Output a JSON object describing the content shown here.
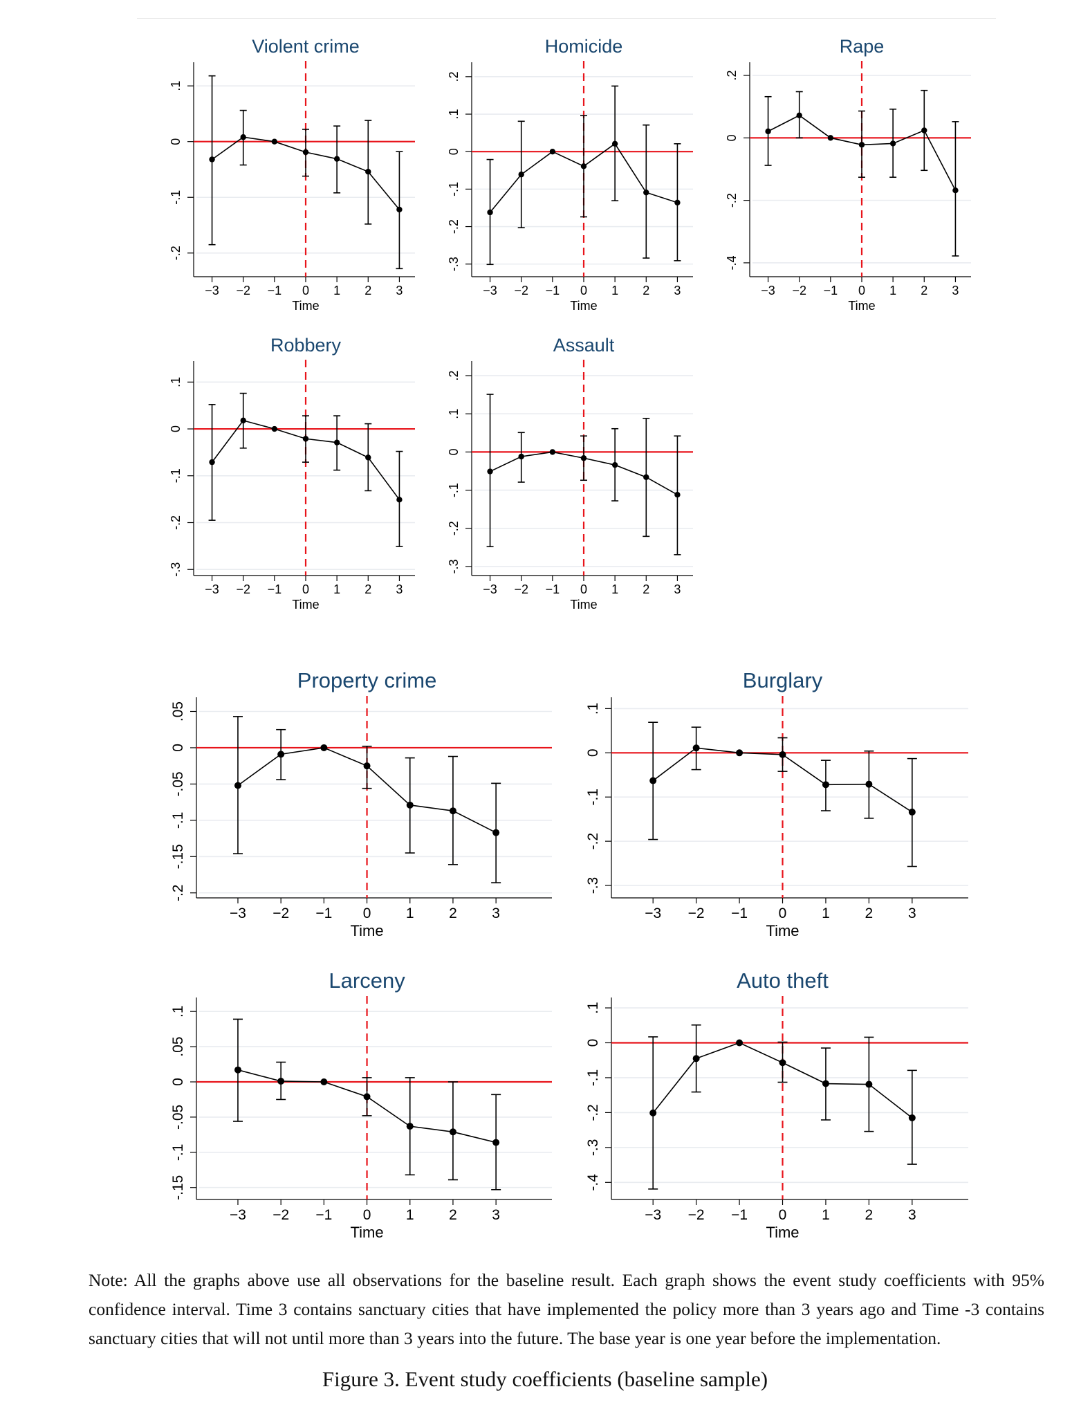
{
  "chart_data": [
    {
      "type": "line",
      "id": "violent",
      "title": "Violent crime",
      "xlabel": "Time",
      "ylabel": "",
      "x": [
        -3,
        -2,
        -1,
        0,
        1,
        2,
        3
      ],
      "series": [
        {
          "name": "coefficient",
          "values": [
            -0.032,
            0.008,
            0.0,
            -0.019,
            -0.031,
            -0.054,
            -0.122
          ],
          "ci_low": [
            -0.185,
            -0.042,
            0.0,
            -0.062,
            -0.092,
            -0.148,
            -0.228
          ],
          "ci_high": [
            0.118,
            0.056,
            0.0,
            0.022,
            0.028,
            0.038,
            -0.018
          ]
        }
      ],
      "xlim": [
        -3.5,
        3.5
      ],
      "ylim": [
        -0.24,
        0.13
      ],
      "yticks": [
        0.1,
        0,
        -0.1,
        -0.2
      ],
      "ytick_labels": [
        ".1",
        "0",
        "-.1",
        "-.2"
      ],
      "xticks": [
        -3,
        -2,
        -1,
        0,
        1,
        2,
        3
      ],
      "xtick_labels": [
        "-3",
        "-2",
        "-1",
        "0",
        "1",
        "2",
        "3"
      ],
      "grid": true
    },
    {
      "type": "line",
      "id": "homicide",
      "title": "Homicide",
      "xlabel": "Time",
      "ylabel": "",
      "x": [
        -3,
        -2,
        -1,
        0,
        1,
        2,
        3
      ],
      "series": [
        {
          "name": "coefficient",
          "values": [
            -0.162,
            -0.061,
            0.0,
            -0.039,
            0.021,
            -0.109,
            -0.136
          ],
          "ci_low": [
            -0.301,
            -0.203,
            0.0,
            -0.174,
            -0.131,
            -0.284,
            -0.291
          ],
          "ci_high": [
            -0.021,
            0.081,
            0.0,
            0.096,
            0.175,
            0.071,
            0.021
          ]
        }
      ],
      "xlim": [
        -3.5,
        3.5
      ],
      "ylim": [
        -0.33,
        0.22
      ],
      "yticks": [
        0.2,
        0.1,
        0,
        -0.1,
        -0.2,
        -0.3
      ],
      "ytick_labels": [
        ".2",
        ".1",
        "0",
        "-.1",
        "-.2",
        "-.3"
      ],
      "xticks": [
        -3,
        -2,
        -1,
        0,
        1,
        2,
        3
      ],
      "xtick_labels": [
        "-3",
        "-2",
        "-1",
        "0",
        "1",
        "2",
        "3"
      ],
      "grid": true
    },
    {
      "type": "line",
      "id": "rape",
      "title": "Rape",
      "xlabel": "Time",
      "ylabel": "",
      "x": [
        -3,
        -2,
        -1,
        0,
        1,
        2,
        3
      ],
      "series": [
        {
          "name": "coefficient",
          "values": [
            0.021,
            0.072,
            0.0,
            -0.022,
            -0.018,
            0.024,
            -0.168
          ],
          "ci_low": [
            -0.088,
            0.0,
            0.0,
            -0.126,
            -0.126,
            -0.104,
            -0.378
          ],
          "ci_high": [
            0.132,
            0.148,
            0.0,
            0.086,
            0.092,
            0.152,
            0.052
          ]
        }
      ],
      "xlim": [
        -3.5,
        3.5
      ],
      "ylim": [
        -0.44,
        0.22
      ],
      "yticks": [
        0.2,
        0,
        -0.2,
        -0.4
      ],
      "ytick_labels": [
        ".2",
        "0",
        "-.2",
        "-.4"
      ],
      "xticks": [
        -3,
        -2,
        -1,
        0,
        1,
        2,
        3
      ],
      "xtick_labels": [
        "-3",
        "-2",
        "-1",
        "0",
        "1",
        "2",
        "3"
      ],
      "grid": true
    },
    {
      "type": "line",
      "id": "robbery",
      "title": "Robbery",
      "xlabel": "Time",
      "ylabel": "",
      "x": [
        -3,
        -2,
        -1,
        0,
        1,
        2,
        3
      ],
      "series": [
        {
          "name": "coefficient",
          "values": [
            -0.071,
            0.018,
            0.0,
            -0.021,
            -0.029,
            -0.061,
            -0.151
          ],
          "ci_low": [
            -0.195,
            -0.041,
            0.0,
            -0.071,
            -0.088,
            -0.132,
            -0.251
          ],
          "ci_high": [
            0.052,
            0.076,
            0.0,
            0.028,
            0.028,
            0.011,
            -0.048
          ]
        }
      ],
      "xlim": [
        -3.5,
        3.5
      ],
      "ylim": [
        -0.31,
        0.13
      ],
      "yticks": [
        0.1,
        0,
        -0.1,
        -0.2,
        -0.3
      ],
      "ytick_labels": [
        ".1",
        "0",
        "-.1",
        "-.2",
        "-.3"
      ],
      "xticks": [
        -3,
        -2,
        -1,
        0,
        1,
        2,
        3
      ],
      "xtick_labels": [
        "-3",
        "-2",
        "-1",
        "0",
        "1",
        "2",
        "3"
      ],
      "grid": true
    },
    {
      "type": "line",
      "id": "assault",
      "title": "Assault",
      "xlabel": "Time",
      "ylabel": "",
      "x": [
        -3,
        -2,
        -1,
        0,
        1,
        2,
        3
      ],
      "series": [
        {
          "name": "coefficient",
          "values": [
            -0.051,
            -0.012,
            0.0,
            -0.016,
            -0.034,
            -0.066,
            -0.112
          ],
          "ci_low": [
            -0.248,
            -0.079,
            0.0,
            -0.074,
            -0.128,
            -0.221,
            -0.269
          ],
          "ci_high": [
            0.151,
            0.051,
            0.0,
            0.042,
            0.061,
            0.088,
            0.042
          ]
        }
      ],
      "xlim": [
        -3.5,
        3.5
      ],
      "ylim": [
        -0.32,
        0.22
      ],
      "yticks": [
        0.2,
        0.1,
        0,
        -0.1,
        -0.2,
        -0.3
      ],
      "ytick_labels": [
        ".2",
        ".1",
        "0",
        "-.1",
        "-.2",
        "-.3"
      ],
      "xticks": [
        -3,
        -2,
        -1,
        0,
        1,
        2,
        3
      ],
      "xtick_labels": [
        "-3",
        "-2",
        "-1",
        "0",
        "1",
        "2",
        "3"
      ],
      "grid": true
    },
    {
      "type": "line",
      "id": "property",
      "title": "Property crime",
      "xlabel": "Time",
      "ylabel": "",
      "x": [
        -3,
        -2,
        -1,
        0,
        1,
        2,
        3
      ],
      "series": [
        {
          "name": "coefficient",
          "values": [
            -0.052,
            -0.009,
            0.0,
            -0.025,
            -0.079,
            -0.087,
            -0.117
          ],
          "ci_low": [
            -0.146,
            -0.044,
            0.0,
            -0.056,
            -0.145,
            -0.161,
            -0.186
          ],
          "ci_high": [
            0.043,
            0.025,
            0.0,
            0.002,
            -0.014,
            -0.012,
            -0.049
          ]
        }
      ],
      "xlim": [
        -3.9,
        4.3
      ],
      "ylim": [
        -0.205,
        0.06
      ],
      "yticks": [
        0.05,
        0,
        -0.05,
        -0.1,
        -0.15,
        -0.2
      ],
      "ytick_labels": [
        ".05",
        "0",
        "-.05",
        "-.1",
        "-.15",
        "-.2"
      ],
      "xticks": [
        -3,
        -2,
        -1,
        0,
        1,
        2,
        3
      ],
      "xtick_labels": [
        "-3",
        "-2",
        "-1",
        "0",
        "1",
        "2",
        "3"
      ],
      "grid": true
    },
    {
      "type": "line",
      "id": "burglary",
      "title": "Burglary",
      "xlabel": "Time",
      "ylabel": "",
      "x": [
        -3,
        -2,
        -1,
        0,
        1,
        2,
        3
      ],
      "series": [
        {
          "name": "coefficient",
          "values": [
            -0.063,
            0.011,
            0.0,
            -0.004,
            -0.072,
            -0.071,
            -0.134
          ],
          "ci_low": [
            -0.196,
            -0.038,
            0.0,
            -0.042,
            -0.131,
            -0.148,
            -0.257
          ],
          "ci_high": [
            0.069,
            0.058,
            0.0,
            0.034,
            -0.017,
            0.004,
            -0.013
          ]
        }
      ],
      "xlim": [
        -3.9,
        4.3
      ],
      "ylim": [
        -0.325,
        0.11
      ],
      "yticks": [
        0.1,
        0,
        -0.1,
        -0.2,
        -0.3
      ],
      "ytick_labels": [
        ".1",
        "0",
        "-.1",
        "-.2",
        "-.3"
      ],
      "xticks": [
        -3,
        -2,
        -1,
        0,
        1,
        2,
        3
      ],
      "xtick_labels": [
        "-3",
        "-2",
        "-1",
        "0",
        "1",
        "2",
        "3"
      ],
      "grid": true
    },
    {
      "type": "line",
      "id": "larceny",
      "title": "Larceny",
      "xlabel": "Time",
      "ylabel": "",
      "x": [
        -3,
        -2,
        -1,
        0,
        1,
        2,
        3
      ],
      "series": [
        {
          "name": "coefficient",
          "values": [
            0.017,
            0.001,
            0.0,
            -0.021,
            -0.063,
            -0.071,
            -0.086
          ],
          "ci_low": [
            -0.056,
            -0.025,
            0.0,
            -0.048,
            -0.132,
            -0.139,
            -0.153
          ],
          "ci_high": [
            0.089,
            0.028,
            0.0,
            0.006,
            0.006,
            0.0,
            -0.018
          ]
        }
      ],
      "xlim": [
        -3.9,
        4.3
      ],
      "ylim": [
        -0.165,
        0.11
      ],
      "yticks": [
        0.1,
        0.05,
        0,
        -0.05,
        -0.1,
        -0.15
      ],
      "ytick_labels": [
        ".1",
        ".05",
        "0",
        "-.05",
        "-.1",
        "-.15"
      ],
      "xticks": [
        -3,
        -2,
        -1,
        0,
        1,
        2,
        3
      ],
      "xtick_labels": [
        "-3",
        "-2",
        "-1",
        "0",
        "1",
        "2",
        "3"
      ],
      "grid": true
    },
    {
      "type": "line",
      "id": "autotheft",
      "title": "Auto theft",
      "xlabel": "Time",
      "ylabel": "",
      "x": [
        -3,
        -2,
        -1,
        0,
        1,
        2,
        3
      ],
      "series": [
        {
          "name": "coefficient",
          "values": [
            -0.201,
            -0.045,
            0.0,
            -0.057,
            -0.117,
            -0.119,
            -0.215
          ],
          "ci_low": [
            -0.419,
            -0.141,
            0.0,
            -0.113,
            -0.221,
            -0.254,
            -0.348
          ],
          "ci_high": [
            0.017,
            0.051,
            0.0,
            0.002,
            -0.015,
            0.016,
            -0.079
          ]
        }
      ],
      "xlim": [
        -3.9,
        4.3
      ],
      "ylim": [
        -0.445,
        0.11
      ],
      "yticks": [
        0.1,
        0,
        -0.1,
        -0.2,
        -0.3,
        -0.4
      ],
      "ytick_labels": [
        ".1",
        "0",
        "-.1",
        "-.2",
        "-.3",
        "-.4"
      ],
      "xticks": [
        -3,
        -2,
        -1,
        0,
        1,
        2,
        3
      ],
      "xtick_labels": [
        "-3",
        "-2",
        "-1",
        "0",
        "1",
        "2",
        "3"
      ],
      "grid": true
    }
  ],
  "colors": {
    "zero_line": "#e8141b",
    "event_line": "#e8141b",
    "series": "#000000",
    "grid": "#e9ecf0",
    "title": "#1a476f"
  },
  "note": "Note: All the graphs above use all observations for the baseline result. Each graph shows the event study coefficients with 95% confidence interval. Time 3 contains sanctuary cities that have implemented the policy more than 3 years ago and Time -3 contains sanctuary cities that will not until more than 3 years into the future. The base year is one year before the implementation.",
  "caption": "Figure 3. Event study coefficients (baseline sample)"
}
